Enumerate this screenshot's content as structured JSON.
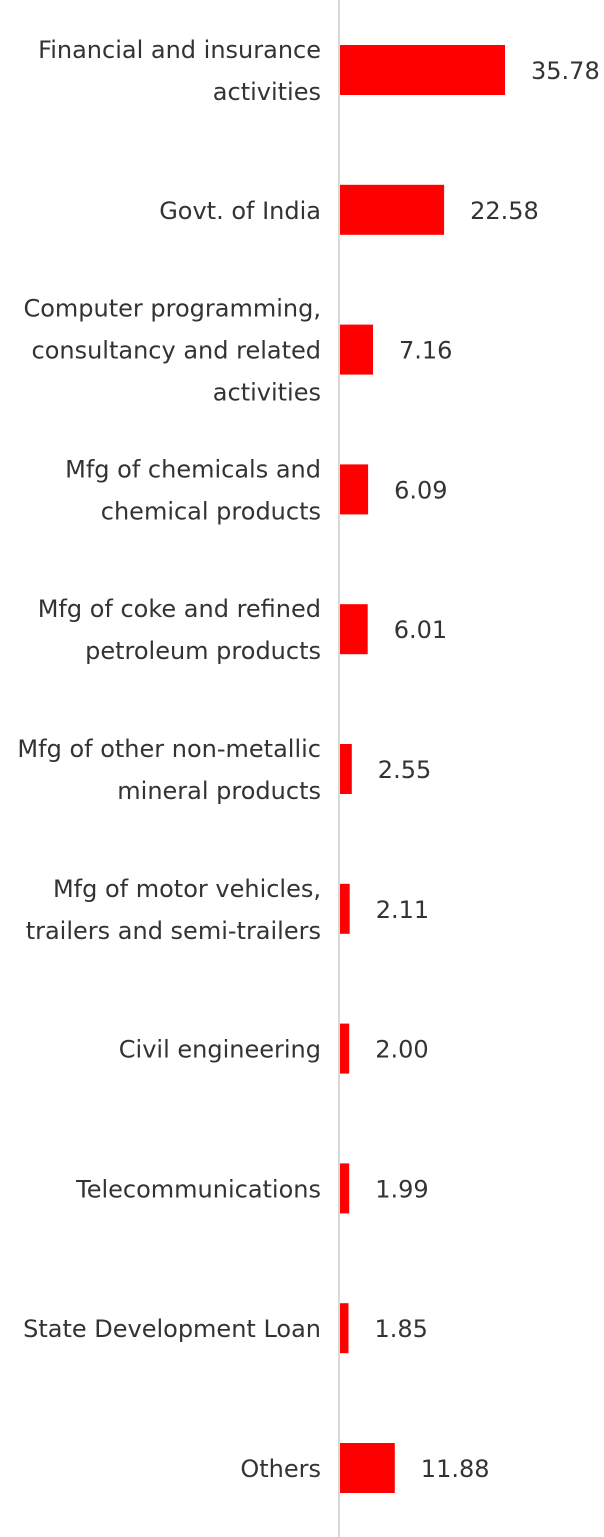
{
  "chart_data": {
    "type": "bar",
    "orientation": "horizontal",
    "categories": [
      [
        "Financial and insurance",
        "activities"
      ],
      [
        "Govt. of India"
      ],
      [
        "Computer programming,",
        "consultancy and related",
        "activities"
      ],
      [
        "Mfg of chemicals and",
        "chemical products"
      ],
      [
        "Mfg of coke and refined",
        "petroleum products"
      ],
      [
        "Mfg of other non-metallic",
        "mineral products"
      ],
      [
        "Mfg of motor vehicles,",
        "trailers and semi-trailers"
      ],
      [
        "Civil engineering"
      ],
      [
        "Telecommunications"
      ],
      [
        "State Development Loan"
      ],
      [
        "Others"
      ]
    ],
    "values": [
      35.78,
      22.58,
      7.16,
      6.09,
      6.01,
      2.55,
      2.11,
      2.0,
      1.99,
      1.85,
      11.88
    ],
    "value_labels": [
      "35.78",
      "22.58",
      "7.16",
      "6.09",
      "6.01",
      "2.55",
      "2.11",
      "2.00",
      "1.99",
      "1.85",
      "11.88"
    ],
    "bar_color": "#ff0000",
    "axis_color": "#d9d9d9",
    "text_color": "#333333",
    "xlim": [
      0,
      40
    ],
    "grid": false,
    "legend": "none"
  }
}
